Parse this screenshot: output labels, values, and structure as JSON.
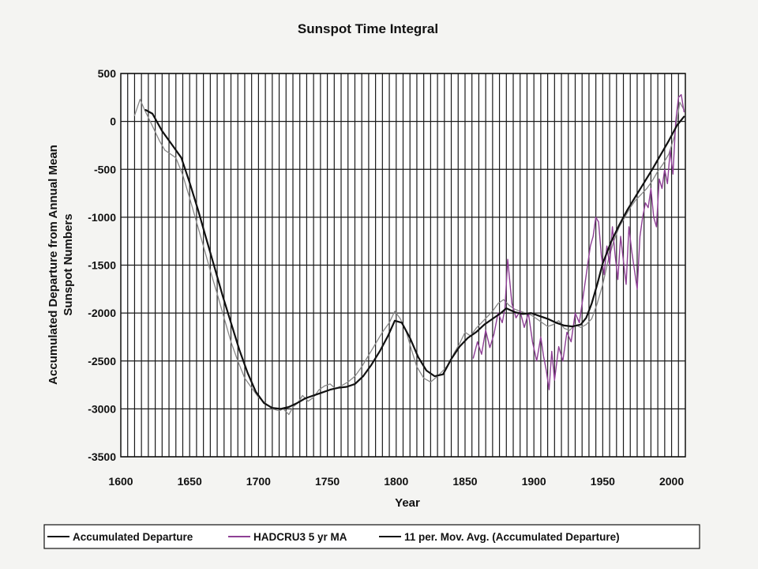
{
  "chart_data": {
    "type": "line",
    "title": "Sunspot Time Integral",
    "xlabel": "Year",
    "ylabel": [
      "Accumulated Departure from Annual Mean",
      "Sunspot Numbers"
    ],
    "xlim": [
      1600,
      2010
    ],
    "ylim": [
      -3500,
      500
    ],
    "x_ticks": [
      1600,
      1650,
      1700,
      1750,
      1800,
      1850,
      1900,
      1950,
      2000
    ],
    "x_tick_labels": [
      "1600",
      "1650",
      "1700",
      "1750",
      "1800",
      "1850",
      "1900",
      "1950",
      "2000"
    ],
    "y_ticks": [
      500,
      0,
      -500,
      -1000,
      -1500,
      -2000,
      -2500,
      -3000,
      -3500
    ],
    "y_tick_labels": [
      "500",
      "0",
      "-500",
      "-1000",
      "-1500",
      "-2000",
      "-2500",
      "-3000",
      "-3500"
    ],
    "grid": "vertical every 5 years; horizontal at each y tick",
    "legend_position": "bottom",
    "series": [
      {
        "name": "Accumulated Departure",
        "color": "#888888",
        "x": [
          1610,
          1614,
          1617,
          1620,
          1624,
          1628,
          1632,
          1636,
          1640,
          1645,
          1650,
          1655,
          1660,
          1665,
          1670,
          1675,
          1680,
          1685,
          1690,
          1695,
          1700,
          1705,
          1710,
          1715,
          1718,
          1722,
          1725,
          1729,
          1732,
          1736,
          1740,
          1744,
          1748,
          1752,
          1756,
          1760,
          1765,
          1770,
          1775,
          1780,
          1785,
          1790,
          1795,
          1799,
          1803,
          1807,
          1811,
          1815,
          1820,
          1825,
          1830,
          1834,
          1838,
          1842,
          1846,
          1850,
          1854,
          1858,
          1862,
          1866,
          1870,
          1874,
          1878,
          1882,
          1886,
          1890,
          1894,
          1898,
          1902,
          1906,
          1910,
          1914,
          1918,
          1922,
          1926,
          1930,
          1934,
          1938,
          1942,
          1946,
          1950,
          1954,
          1958,
          1962,
          1966,
          1970,
          1974,
          1978,
          1982,
          1986,
          1990,
          1994,
          1998,
          2002,
          2006,
          2009
        ],
        "y": [
          60,
          230,
          130,
          40,
          -80,
          -200,
          -300,
          -340,
          -380,
          -560,
          -800,
          -1050,
          -1300,
          -1560,
          -1800,
          -2050,
          -2300,
          -2500,
          -2680,
          -2780,
          -2880,
          -2940,
          -3000,
          -3020,
          -3000,
          -3060,
          -2980,
          -2930,
          -2860,
          -2920,
          -2880,
          -2800,
          -2760,
          -2740,
          -2790,
          -2760,
          -2720,
          -2660,
          -2560,
          -2440,
          -2320,
          -2200,
          -2100,
          -1980,
          -2060,
          -2180,
          -2380,
          -2560,
          -2680,
          -2720,
          -2660,
          -2600,
          -2540,
          -2420,
          -2320,
          -2200,
          -2240,
          -2160,
          -2100,
          -2040,
          -1980,
          -1900,
          -1860,
          -1920,
          -1960,
          -1980,
          -2000,
          -2020,
          -2060,
          -2100,
          -2140,
          -2120,
          -2080,
          -2160,
          -2180,
          -2120,
          -2150,
          -2120,
          -2060,
          -1900,
          -1700,
          -1450,
          -1250,
          -1100,
          -1000,
          -900,
          -820,
          -760,
          -700,
          -620,
          -520,
          -440,
          -340,
          -160,
          200,
          120
        ]
      },
      {
        "name": "HADCRU3 5 yr MA",
        "color": "#8e3f95",
        "x": [
          1856,
          1859,
          1862,
          1865,
          1868,
          1871,
          1874,
          1877,
          1879,
          1881,
          1884,
          1887,
          1890,
          1893,
          1896,
          1899,
          1902,
          1905,
          1907,
          1909,
          1911,
          1913,
          1915,
          1918,
          1921,
          1924,
          1927,
          1930,
          1933,
          1936,
          1939,
          1941,
          1943,
          1945,
          1947,
          1949,
          1951,
          1953,
          1955,
          1957,
          1959,
          1961,
          1963,
          1965,
          1967,
          1969,
          1971,
          1973,
          1975,
          1977,
          1979,
          1981,
          1983,
          1985,
          1987,
          1989,
          1991,
          1993,
          1995,
          1997,
          1999,
          2001,
          2003,
          2005,
          2007,
          2009
        ],
        "y": [
          -2470,
          -2300,
          -2430,
          -2180,
          -2360,
          -2220,
          -2000,
          -2100,
          -1950,
          -1440,
          -1900,
          -2050,
          -1980,
          -2150,
          -2000,
          -2300,
          -2500,
          -2250,
          -2450,
          -2600,
          -2800,
          -2400,
          -2700,
          -2350,
          -2500,
          -2200,
          -2300,
          -2000,
          -2100,
          -1800,
          -1500,
          -1300,
          -1200,
          -1000,
          -1050,
          -1400,
          -1600,
          -1300,
          -1500,
          -1100,
          -1400,
          -1650,
          -1200,
          -1450,
          -1700,
          -1100,
          -1350,
          -1550,
          -1750,
          -1200,
          -1000,
          -850,
          -900,
          -700,
          -1000,
          -1100,
          -600,
          -700,
          -500,
          -650,
          -300,
          -550,
          0,
          250,
          280,
          100
        ]
      },
      {
        "name": "11 per. Mov. Avg. (Accumulated Departure)",
        "color": "#111111",
        "x": [
          1618,
          1623,
          1630,
          1638,
          1644,
          1650,
          1656,
          1662,
          1668,
          1674,
          1680,
          1686,
          1692,
          1698,
          1704,
          1710,
          1716,
          1722,
          1728,
          1734,
          1740,
          1746,
          1752,
          1758,
          1764,
          1770,
          1776,
          1782,
          1788,
          1794,
          1799,
          1804,
          1810,
          1816,
          1822,
          1828,
          1834,
          1840,
          1846,
          1852,
          1858,
          1864,
          1870,
          1876,
          1880,
          1886,
          1892,
          1898,
          1904,
          1910,
          1916,
          1922,
          1928,
          1934,
          1938,
          1942,
          1946,
          1950,
          1956,
          1962,
          1968,
          1974,
          1980,
          1986,
          1992,
          1998,
          2004,
          2009
        ],
        "y": [
          120,
          80,
          -100,
          -260,
          -380,
          -640,
          -920,
          -1220,
          -1520,
          -1820,
          -2100,
          -2380,
          -2620,
          -2820,
          -2940,
          -2990,
          -3000,
          -2980,
          -2940,
          -2890,
          -2860,
          -2830,
          -2800,
          -2780,
          -2770,
          -2740,
          -2660,
          -2540,
          -2400,
          -2240,
          -2080,
          -2100,
          -2260,
          -2460,
          -2600,
          -2660,
          -2640,
          -2480,
          -2350,
          -2260,
          -2200,
          -2120,
          -2060,
          -2000,
          -1950,
          -1990,
          -2010,
          -2000,
          -2030,
          -2060,
          -2100,
          -2130,
          -2140,
          -2120,
          -2050,
          -1900,
          -1700,
          -1480,
          -1260,
          -1080,
          -920,
          -780,
          -640,
          -500,
          -350,
          -200,
          -40,
          50
        ]
      }
    ]
  }
}
